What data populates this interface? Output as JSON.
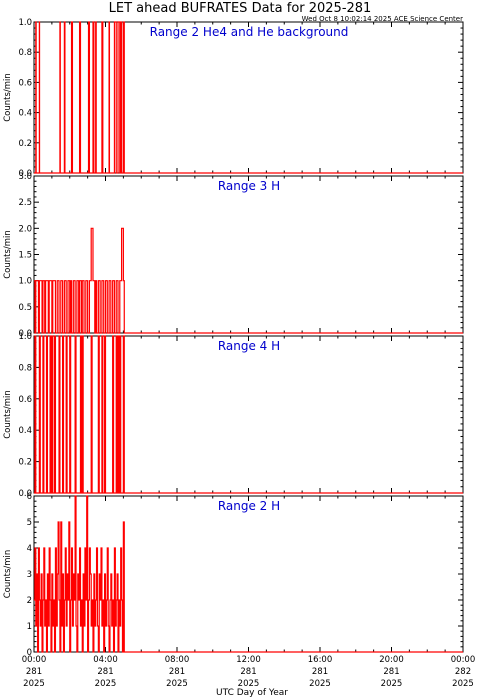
{
  "header": {
    "title": "LET ahead BUFRATES Data for 2025-281",
    "timestamp": "Wed Oct  8 10:02:14 2025 ACE Science Center"
  },
  "colors": {
    "data": "#ff0000",
    "panel_title": "#0000cc",
    "axes": "#000000"
  },
  "chart_data": [
    {
      "type": "line",
      "title": "Range 2 He4 and He background",
      "ylabel": "Counts/min",
      "ylim": [
        0,
        1.0
      ],
      "yticks": [
        "0.0",
        "0.2",
        "0.4",
        "0.6",
        "0.8",
        "1.0"
      ],
      "series": [
        {
          "x": [
            0.0,
            0.1,
            0.12,
            0.3,
            0.31,
            1.45,
            1.47,
            1.7,
            1.73,
            2.1,
            2.15,
            2.55,
            2.6,
            3.0,
            3.05,
            3.1,
            3.14,
            3.3,
            3.35,
            3.45,
            3.48,
            3.8,
            3.85,
            4.2,
            4.22,
            4.5,
            4.6,
            4.7,
            4.8,
            4.85,
            4.9,
            5.0,
            5.05,
            24.0
          ],
          "values": [
            0,
            1,
            0,
            1,
            0,
            1,
            0,
            1,
            0,
            1,
            0,
            1,
            0,
            0,
            1,
            0,
            0,
            1,
            0,
            1,
            0,
            1,
            0,
            1,
            0,
            1,
            0,
            1,
            0,
            1,
            0,
            1,
            0,
            0
          ]
        }
      ]
    },
    {
      "type": "line",
      "title": "Range 3 H",
      "ylabel": "Counts/min",
      "ylim": [
        0,
        3.0
      ],
      "yticks": [
        "0.0",
        "0.5",
        "1.0",
        "1.5",
        "2.0",
        "2.5",
        "3.0"
      ],
      "series": [
        {
          "x": [
            0.0,
            0.05,
            0.1,
            0.2,
            0.25,
            0.3,
            0.4,
            0.45,
            0.5,
            0.6,
            0.65,
            0.8,
            0.85,
            1.0,
            1.05,
            1.2,
            1.3,
            1.4,
            1.5,
            1.6,
            1.7,
            1.8,
            1.9,
            2.0,
            2.05,
            2.1,
            2.2,
            2.3,
            2.4,
            2.5,
            2.55,
            2.65,
            2.7,
            2.8,
            2.9,
            3.0,
            3.1,
            3.2,
            3.3,
            3.4,
            3.45,
            3.5,
            3.6,
            3.7,
            3.8,
            3.9,
            4.0,
            4.1,
            4.2,
            4.3,
            4.4,
            4.5,
            4.6,
            4.7,
            4.8,
            4.9,
            5.0,
            5.05,
            24.0
          ],
          "values": [
            1,
            0,
            1,
            1,
            0,
            1,
            1,
            0,
            1,
            0,
            1,
            0,
            1,
            0,
            1,
            0,
            1,
            0,
            1,
            0,
            1,
            0,
            1,
            0,
            1,
            0,
            1,
            0,
            1,
            0,
            1,
            0,
            1,
            0,
            1,
            0,
            1,
            2,
            1,
            0,
            1,
            0,
            1,
            0,
            1,
            0,
            1,
            0,
            1,
            0,
            1,
            0,
            1,
            0,
            1,
            2,
            1,
            0,
            0
          ]
        }
      ]
    },
    {
      "type": "line",
      "title": "Range 4 H",
      "ylabel": "Counts/min",
      "ylim": [
        0,
        1.0
      ],
      "yticks": [
        "0.0",
        "0.2",
        "0.4",
        "0.6",
        "0.8",
        "1.0"
      ],
      "series": [
        {
          "x": [
            0.0,
            0.05,
            0.1,
            0.3,
            0.35,
            0.5,
            0.55,
            0.7,
            0.75,
            0.9,
            0.95,
            1.0,
            1.05,
            1.15,
            1.2,
            1.4,
            1.45,
            1.6,
            1.65,
            1.8,
            1.85,
            2.0,
            2.05,
            2.3,
            2.35,
            2.6,
            2.65,
            2.7,
            2.75,
            3.2,
            3.25,
            3.6,
            3.65,
            3.8,
            3.85,
            3.95,
            4.0,
            4.4,
            4.45,
            4.6,
            4.65,
            4.7,
            4.75,
            4.8,
            4.85,
            5.0,
            5.05,
            24.0
          ],
          "values": [
            0,
            1,
            0,
            1,
            0,
            1,
            0,
            1,
            0,
            1,
            0,
            1,
            0,
            1,
            0,
            1,
            0,
            1,
            0,
            1,
            0,
            1,
            0,
            1,
            0,
            1,
            0,
            1,
            0,
            1,
            0,
            1,
            0,
            1,
            0,
            1,
            0,
            1,
            0,
            1,
            0,
            1,
            0,
            1,
            0,
            1,
            0,
            0
          ]
        }
      ]
    },
    {
      "type": "line",
      "title": "Range 2 H",
      "ylabel": "Counts/min",
      "ylim": [
        0,
        6
      ],
      "yticks": [
        "0",
        "1",
        "2",
        "3",
        "4",
        "5",
        "6"
      ],
      "series": [
        {
          "x": [
            0.0,
            0.05,
            0.1,
            0.15,
            0.2,
            0.25,
            0.3,
            0.35,
            0.4,
            0.45,
            0.5,
            0.55,
            0.6,
            0.65,
            0.7,
            0.75,
            0.8,
            0.85,
            0.9,
            0.95,
            1.0,
            1.05,
            1.1,
            1.15,
            1.2,
            1.25,
            1.3,
            1.35,
            1.4,
            1.45,
            1.5,
            1.55,
            1.6,
            1.65,
            1.7,
            1.75,
            1.8,
            1.85,
            1.9,
            1.95,
            2.0,
            2.05,
            2.1,
            2.15,
            2.2,
            2.25,
            2.3,
            2.35,
            2.4,
            2.45,
            2.5,
            2.55,
            2.6,
            2.65,
            2.7,
            2.75,
            2.8,
            2.85,
            2.9,
            2.95,
            3.0,
            3.05,
            3.1,
            3.15,
            3.2,
            3.25,
            3.3,
            3.35,
            3.4,
            3.45,
            3.5,
            3.55,
            3.6,
            3.65,
            3.7,
            3.75,
            3.8,
            3.85,
            3.9,
            3.95,
            4.0,
            4.05,
            4.1,
            4.15,
            4.2,
            4.25,
            4.3,
            4.35,
            4.4,
            4.45,
            4.5,
            4.55,
            4.6,
            4.65,
            4.7,
            4.75,
            4.8,
            4.85,
            4.9,
            4.95,
            5.0,
            5.05,
            24.0
          ],
          "values": [
            2,
            4,
            1,
            3,
            0,
            4,
            2,
            1,
            3,
            0,
            2,
            4,
            1,
            2,
            0,
            3,
            1,
            4,
            2,
            0,
            3,
            1,
            2,
            0,
            4,
            1,
            3,
            5,
            2,
            0,
            5,
            1,
            3,
            0,
            2,
            4,
            1,
            3,
            2,
            5,
            0,
            2,
            4,
            1,
            3,
            2,
            6,
            1,
            0,
            3,
            2,
            4,
            1,
            2,
            0,
            3,
            1,
            4,
            2,
            6,
            0,
            2,
            4,
            3,
            1,
            2,
            0,
            3,
            1,
            2,
            4,
            1,
            0,
            3,
            2,
            4,
            1,
            2,
            0,
            3,
            1,
            2,
            4,
            1,
            0,
            2,
            3,
            1,
            2,
            0,
            4,
            1,
            2,
            3,
            0,
            2,
            1,
            4,
            2,
            0,
            5,
            0,
            0
          ]
        }
      ]
    }
  ],
  "xaxis": {
    "label": "UTC Day of Year",
    "xlim": [
      0,
      24
    ],
    "ticks": [
      {
        "time": "00:00",
        "doy": "281",
        "year": "2025"
      },
      {
        "time": "04:00",
        "doy": "281",
        "year": "2025"
      },
      {
        "time": "08:00",
        "doy": "281",
        "year": "2025"
      },
      {
        "time": "12:00",
        "doy": "281",
        "year": "2025"
      },
      {
        "time": "16:00",
        "doy": "281",
        "year": "2025"
      },
      {
        "time": "20:00",
        "doy": "281",
        "year": "2025"
      },
      {
        "time": "00:00",
        "doy": "282",
        "year": "2025"
      }
    ]
  }
}
